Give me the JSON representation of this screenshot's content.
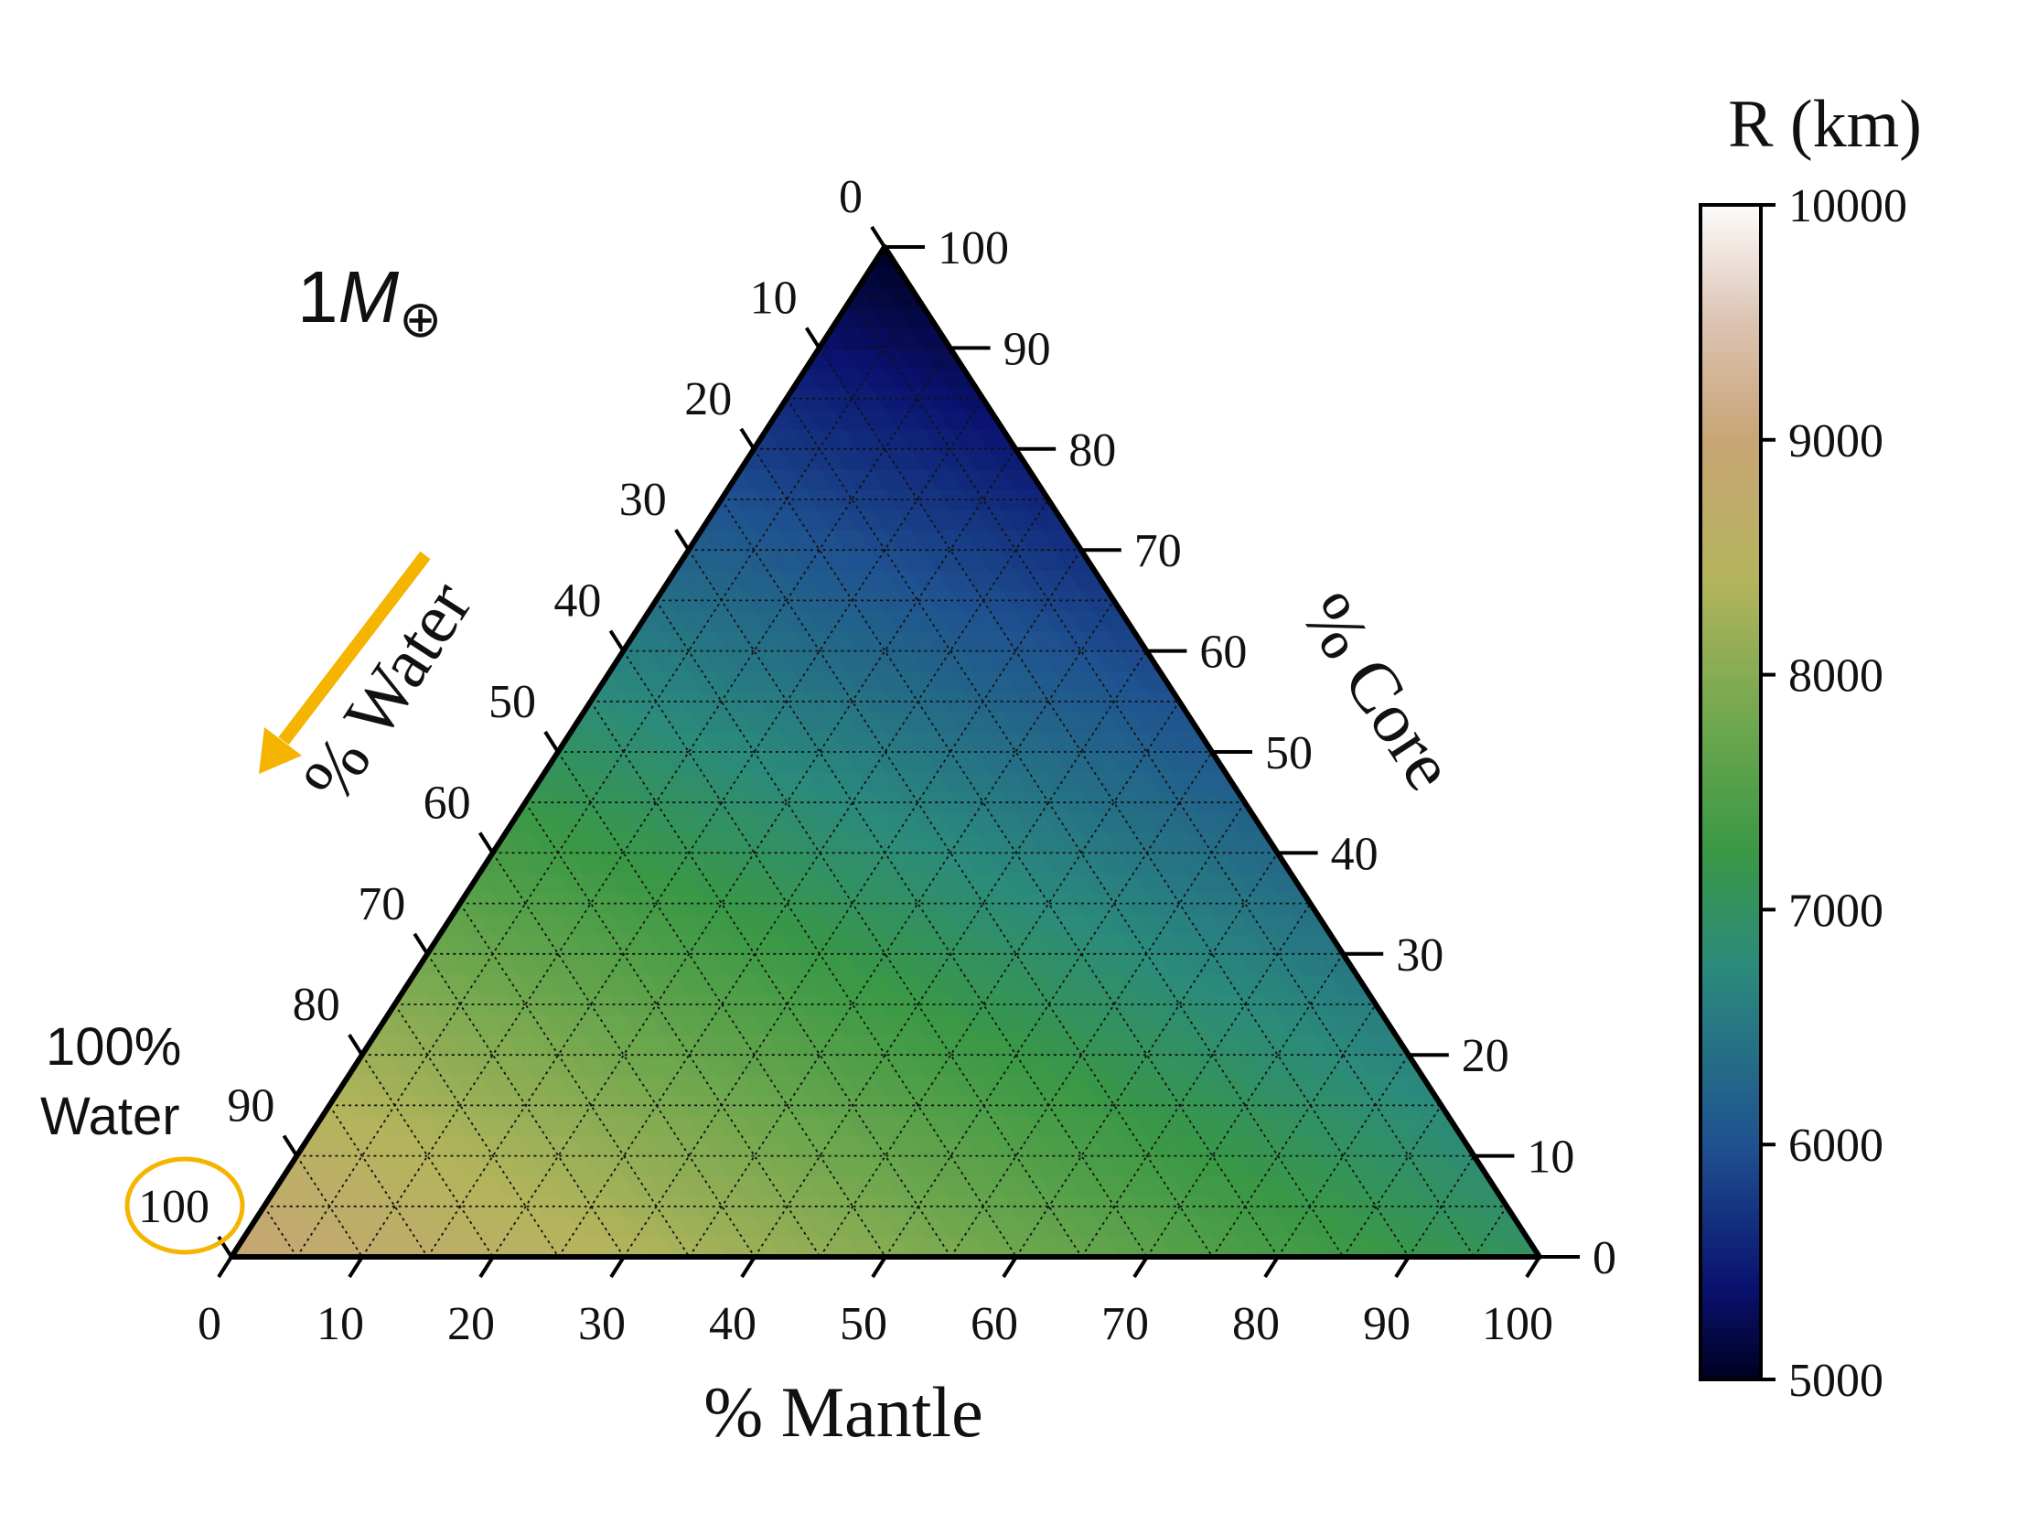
{
  "chart_data": {
    "type": "heatmap",
    "subtype": "ternary",
    "mass_label_prefix": "1",
    "mass_label_symbol": "M",
    "mass_label_subscript": "⊕",
    "axes": {
      "mantle": {
        "label": "% Mantle",
        "ticks": [
          "0",
          "10",
          "20",
          "30",
          "40",
          "50",
          "60",
          "70",
          "80",
          "90",
          "100"
        ]
      },
      "core": {
        "label": "% Core",
        "ticks": [
          "0",
          "10",
          "20",
          "30",
          "40",
          "50",
          "60",
          "70",
          "80",
          "90",
          "100"
        ]
      },
      "water": {
        "label": "% Water",
        "ticks": [
          "0",
          "10",
          "20",
          "30",
          "40",
          "50",
          "60",
          "70",
          "80",
          "90",
          "100"
        ]
      }
    },
    "grid": true,
    "grid_step": 5,
    "colorbar": {
      "label": "R (km)",
      "min": 5000,
      "max": 10000,
      "ticks": [
        "5000",
        "6000",
        "7000",
        "8000",
        "9000",
        "10000"
      ],
      "colormap": "gist_earth"
    },
    "corner_values_km": {
      "water_100": 9000,
      "mantle_100": 7000,
      "core_100": 5000
    },
    "annotation": {
      "line1": "100%",
      "line2": "Water",
      "highlight_color": "#f5b400"
    },
    "arrow_color": "#f5b400"
  }
}
